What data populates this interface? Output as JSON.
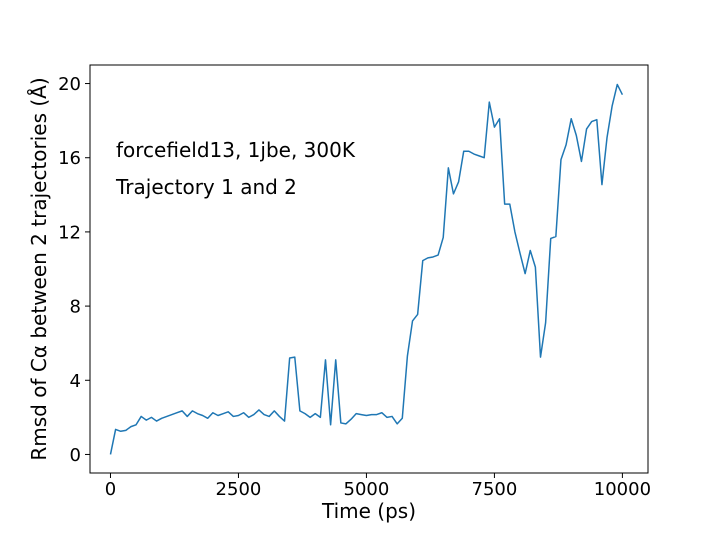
{
  "chart_data": {
    "type": "line",
    "xlabel": "Time (ps)",
    "ylabel": "Rmsd of Cα between 2 trajectories (Å)",
    "xlim": [
      -400,
      10500
    ],
    "ylim": [
      -1,
      21
    ],
    "xticks": [
      0,
      2500,
      5000,
      7500,
      10000
    ],
    "yticks": [
      0,
      4,
      8,
      12,
      16,
      20
    ],
    "grid": false,
    "annotations": [
      "forcefield13, 1jbe, 300K",
      "Trajectory 1 and 2"
    ],
    "series_color": "#1f77b4",
    "series": [
      {
        "x": [
          0,
          100,
          200,
          300,
          400,
          500,
          600,
          700,
          800,
          900,
          1000,
          1100,
          1200,
          1300,
          1400,
          1500,
          1600,
          1700,
          1800,
          1900,
          2000,
          2100,
          2200,
          2300,
          2400,
          2500,
          2600,
          2700,
          2800,
          2900,
          3000,
          3100,
          3200,
          3300,
          3400,
          3500,
          3600,
          3700,
          3800,
          3900,
          4000,
          4100,
          4200,
          4300,
          4400,
          4500,
          4600,
          4700,
          4800,
          4900,
          5000,
          5100,
          5200,
          5300,
          5400,
          5500,
          5600,
          5700,
          5800,
          5900,
          6000,
          6100,
          6200,
          6300,
          6400,
          6500,
          6600,
          6700,
          6800,
          6900,
          7000,
          7100,
          7200,
          7300,
          7400,
          7500,
          7600,
          7700,
          7800,
          7900,
          8000,
          8100,
          8200,
          8300,
          8400,
          8500,
          8600,
          8700,
          8800,
          8900,
          9000,
          9100,
          9200,
          9300,
          9400,
          9500,
          9600,
          9700,
          9800,
          9900,
          10000
        ],
        "y": [
          0.0,
          1.35,
          1.25,
          1.3,
          1.5,
          1.6,
          2.05,
          1.85,
          2.0,
          1.8,
          1.95,
          2.05,
          2.15,
          2.25,
          2.35,
          2.05,
          2.35,
          2.2,
          2.1,
          1.95,
          2.25,
          2.1,
          2.2,
          2.3,
          2.05,
          2.1,
          2.25,
          2.0,
          2.15,
          2.4,
          2.15,
          2.05,
          2.35,
          2.05,
          1.8,
          5.2,
          5.25,
          2.35,
          2.2,
          2.0,
          2.2,
          2.0,
          5.1,
          1.6,
          5.1,
          1.7,
          1.65,
          1.9,
          2.2,
          2.15,
          2.1,
          2.15,
          2.15,
          2.25,
          2.0,
          2.05,
          1.65,
          1.95,
          5.3,
          7.2,
          7.55,
          10.45,
          10.6,
          10.65,
          10.75,
          11.7,
          15.45,
          14.05,
          14.7,
          16.35,
          16.35,
          16.2,
          16.1,
          16.0,
          19.0,
          17.65,
          18.1,
          13.5,
          13.5,
          12.0,
          10.85,
          9.75,
          11.0,
          10.1,
          5.25,
          7.1,
          11.65,
          11.75,
          15.9,
          16.7,
          18.1,
          17.2,
          15.8,
          17.55,
          17.95,
          18.05,
          14.55,
          17.1,
          18.8,
          19.95,
          19.4
        ]
      }
    ]
  }
}
